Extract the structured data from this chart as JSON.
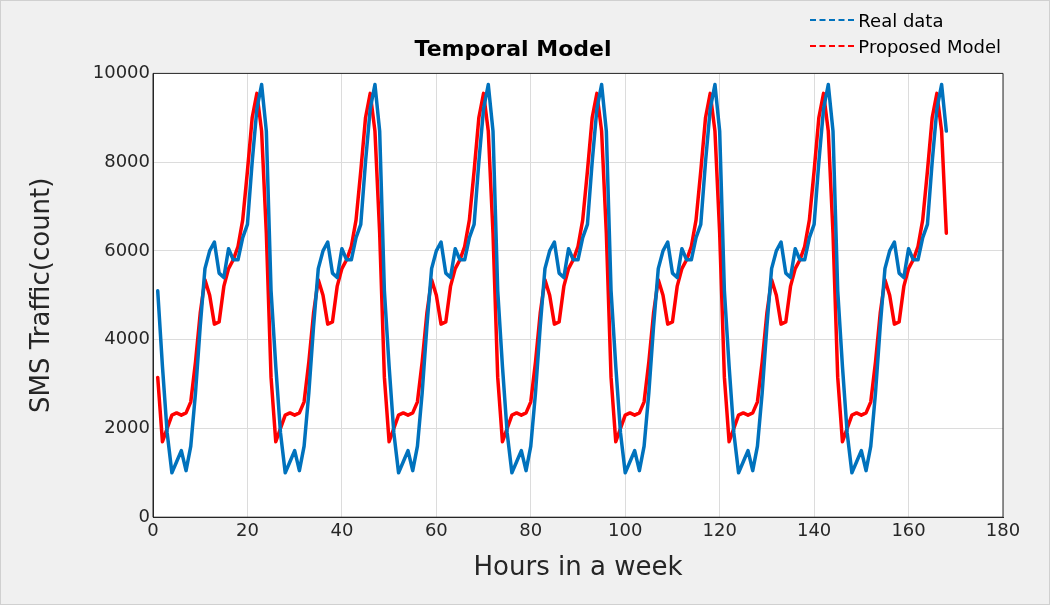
{
  "chart_data": {
    "type": "line",
    "title": "Temporal Model",
    "xlabel": "Hours in a week",
    "ylabel": "SMS Traffic(count)",
    "x": [
      1,
      2,
      3,
      4,
      5,
      6,
      7,
      8,
      9,
      10,
      11,
      12,
      13,
      14,
      15,
      16,
      17,
      18,
      19,
      20,
      21,
      22,
      23,
      24,
      25,
      26,
      27,
      28,
      29,
      30,
      31,
      32,
      33,
      34,
      35,
      36,
      37,
      38,
      39,
      40,
      41,
      42,
      43,
      44,
      45,
      46,
      47,
      48,
      49,
      50,
      51,
      52,
      53,
      54,
      55,
      56,
      57,
      58,
      59,
      60,
      61,
      62,
      63,
      64,
      65,
      66,
      67,
      68,
      69,
      70,
      71,
      72,
      73,
      74,
      75,
      76,
      77,
      78,
      79,
      80,
      81,
      82,
      83,
      84,
      85,
      86,
      87,
      88,
      89,
      90,
      91,
      92,
      93,
      94,
      95,
      96,
      97,
      98,
      99,
      100,
      101,
      102,
      103,
      104,
      105,
      106,
      107,
      108,
      109,
      110,
      111,
      112,
      113,
      114,
      115,
      116,
      117,
      118,
      119,
      120,
      121,
      122,
      123,
      124,
      125,
      126,
      127,
      128,
      129,
      130,
      131,
      132,
      133,
      134,
      135,
      136,
      137,
      138,
      139,
      140,
      141,
      142,
      143,
      144,
      145,
      146,
      147,
      148,
      149,
      150,
      151,
      152,
      153,
      154,
      155,
      156,
      157,
      158,
      159,
      160,
      161,
      162,
      163,
      164,
      165,
      166,
      167,
      168
    ],
    "series": [
      {
        "name": "Real data",
        "color": "#0072bd",
        "values": [
          5100,
          3400,
          1900,
          1000,
          1250,
          1500,
          1050,
          1600,
          2800,
          4300,
          5600,
          6000,
          6200,
          5500,
          5400,
          6050,
          5800,
          5800,
          6300,
          6600,
          8000,
          9200,
          9750,
          8700,
          5100,
          3400,
          1900,
          1000,
          1250,
          1500,
          1050,
          1600,
          2800,
          4300,
          5600,
          6000,
          6200,
          5500,
          5400,
          6050,
          5800,
          5800,
          6300,
          6600,
          8000,
          9200,
          9750,
          8700,
          5100,
          3400,
          1900,
          1000,
          1250,
          1500,
          1050,
          1600,
          2800,
          4300,
          5600,
          6000,
          6200,
          5500,
          5400,
          6050,
          5800,
          5800,
          6300,
          6600,
          8000,
          9200,
          9750,
          8700,
          5100,
          3400,
          1900,
          1000,
          1250,
          1500,
          1050,
          1600,
          2800,
          4300,
          5600,
          6000,
          6200,
          5500,
          5400,
          6050,
          5800,
          5800,
          6300,
          6600,
          8000,
          9200,
          9750,
          8700,
          5100,
          3400,
          1900,
          1000,
          1250,
          1500,
          1050,
          1600,
          2800,
          4300,
          5600,
          6000,
          6200,
          5500,
          5400,
          6050,
          5800,
          5800,
          6300,
          6600,
          8000,
          9200,
          9750,
          8700,
          5100,
          3400,
          1900,
          1000,
          1250,
          1500,
          1050,
          1600,
          2800,
          4300,
          5600,
          6000,
          6200,
          5500,
          5400,
          6050,
          5800,
          5800,
          6300,
          6600,
          8000,
          9200,
          9750,
          8700,
          5100,
          3400,
          1900,
          1000,
          1250,
          1500,
          1050,
          1600,
          2800,
          4300,
          5600,
          6000,
          6200,
          5500,
          5400,
          6050,
          5800,
          5800,
          6300,
          6600,
          8000,
          9200,
          9750,
          8700
        ]
      },
      {
        "name": "Proposed Model",
        "color": "#ff0000",
        "values": [
          3150,
          1700,
          2000,
          2300,
          2350,
          2300,
          2350,
          2600,
          3500,
          4600,
          5350,
          5000,
          4350,
          4400,
          5200,
          5600,
          5800,
          6100,
          6700,
          7800,
          9000,
          9550,
          8700,
          6400,
          3150,
          1700,
          2000,
          2300,
          2350,
          2300,
          2350,
          2600,
          3500,
          4600,
          5350,
          5000,
          4350,
          4400,
          5200,
          5600,
          5800,
          6100,
          6700,
          7800,
          9000,
          9550,
          8700,
          6400,
          3150,
          1700,
          2000,
          2300,
          2350,
          2300,
          2350,
          2600,
          3500,
          4600,
          5350,
          5000,
          4350,
          4400,
          5200,
          5600,
          5800,
          6100,
          6700,
          7800,
          9000,
          9550,
          8700,
          6400,
          3150,
          1700,
          2000,
          2300,
          2350,
          2300,
          2350,
          2600,
          3500,
          4600,
          5350,
          5000,
          4350,
          4400,
          5200,
          5600,
          5800,
          6100,
          6700,
          7800,
          9000,
          9550,
          8700,
          6400,
          3150,
          1700,
          2000,
          2300,
          2350,
          2300,
          2350,
          2600,
          3500,
          4600,
          5350,
          5000,
          4350,
          4400,
          5200,
          5600,
          5800,
          6100,
          6700,
          7800,
          9000,
          9550,
          8700,
          6400,
          3150,
          1700,
          2000,
          2300,
          2350,
          2300,
          2350,
          2600,
          3500,
          4600,
          5350,
          5000,
          4350,
          4400,
          5200,
          5600,
          5800,
          6100,
          6700,
          7800,
          9000,
          9550,
          8700,
          6400,
          3150,
          1700,
          2000,
          2300,
          2350,
          2300,
          2350,
          2600,
          3500,
          4600,
          5350,
          5000,
          4350,
          4400,
          5200,
          5600,
          5800,
          6100,
          6700,
          7800,
          9000,
          9550,
          8700,
          6400
        ]
      }
    ],
    "xlim": [
      0,
      180
    ],
    "xticks": [
      0,
      20,
      40,
      60,
      80,
      100,
      120,
      140,
      160,
      180
    ],
    "ylim": [
      0,
      10000
    ],
    "yticks": [
      0,
      2000,
      4000,
      6000,
      8000,
      10000
    ],
    "grid": true,
    "legend": "top right",
    "marker": "none",
    "line_style": "solid"
  }
}
